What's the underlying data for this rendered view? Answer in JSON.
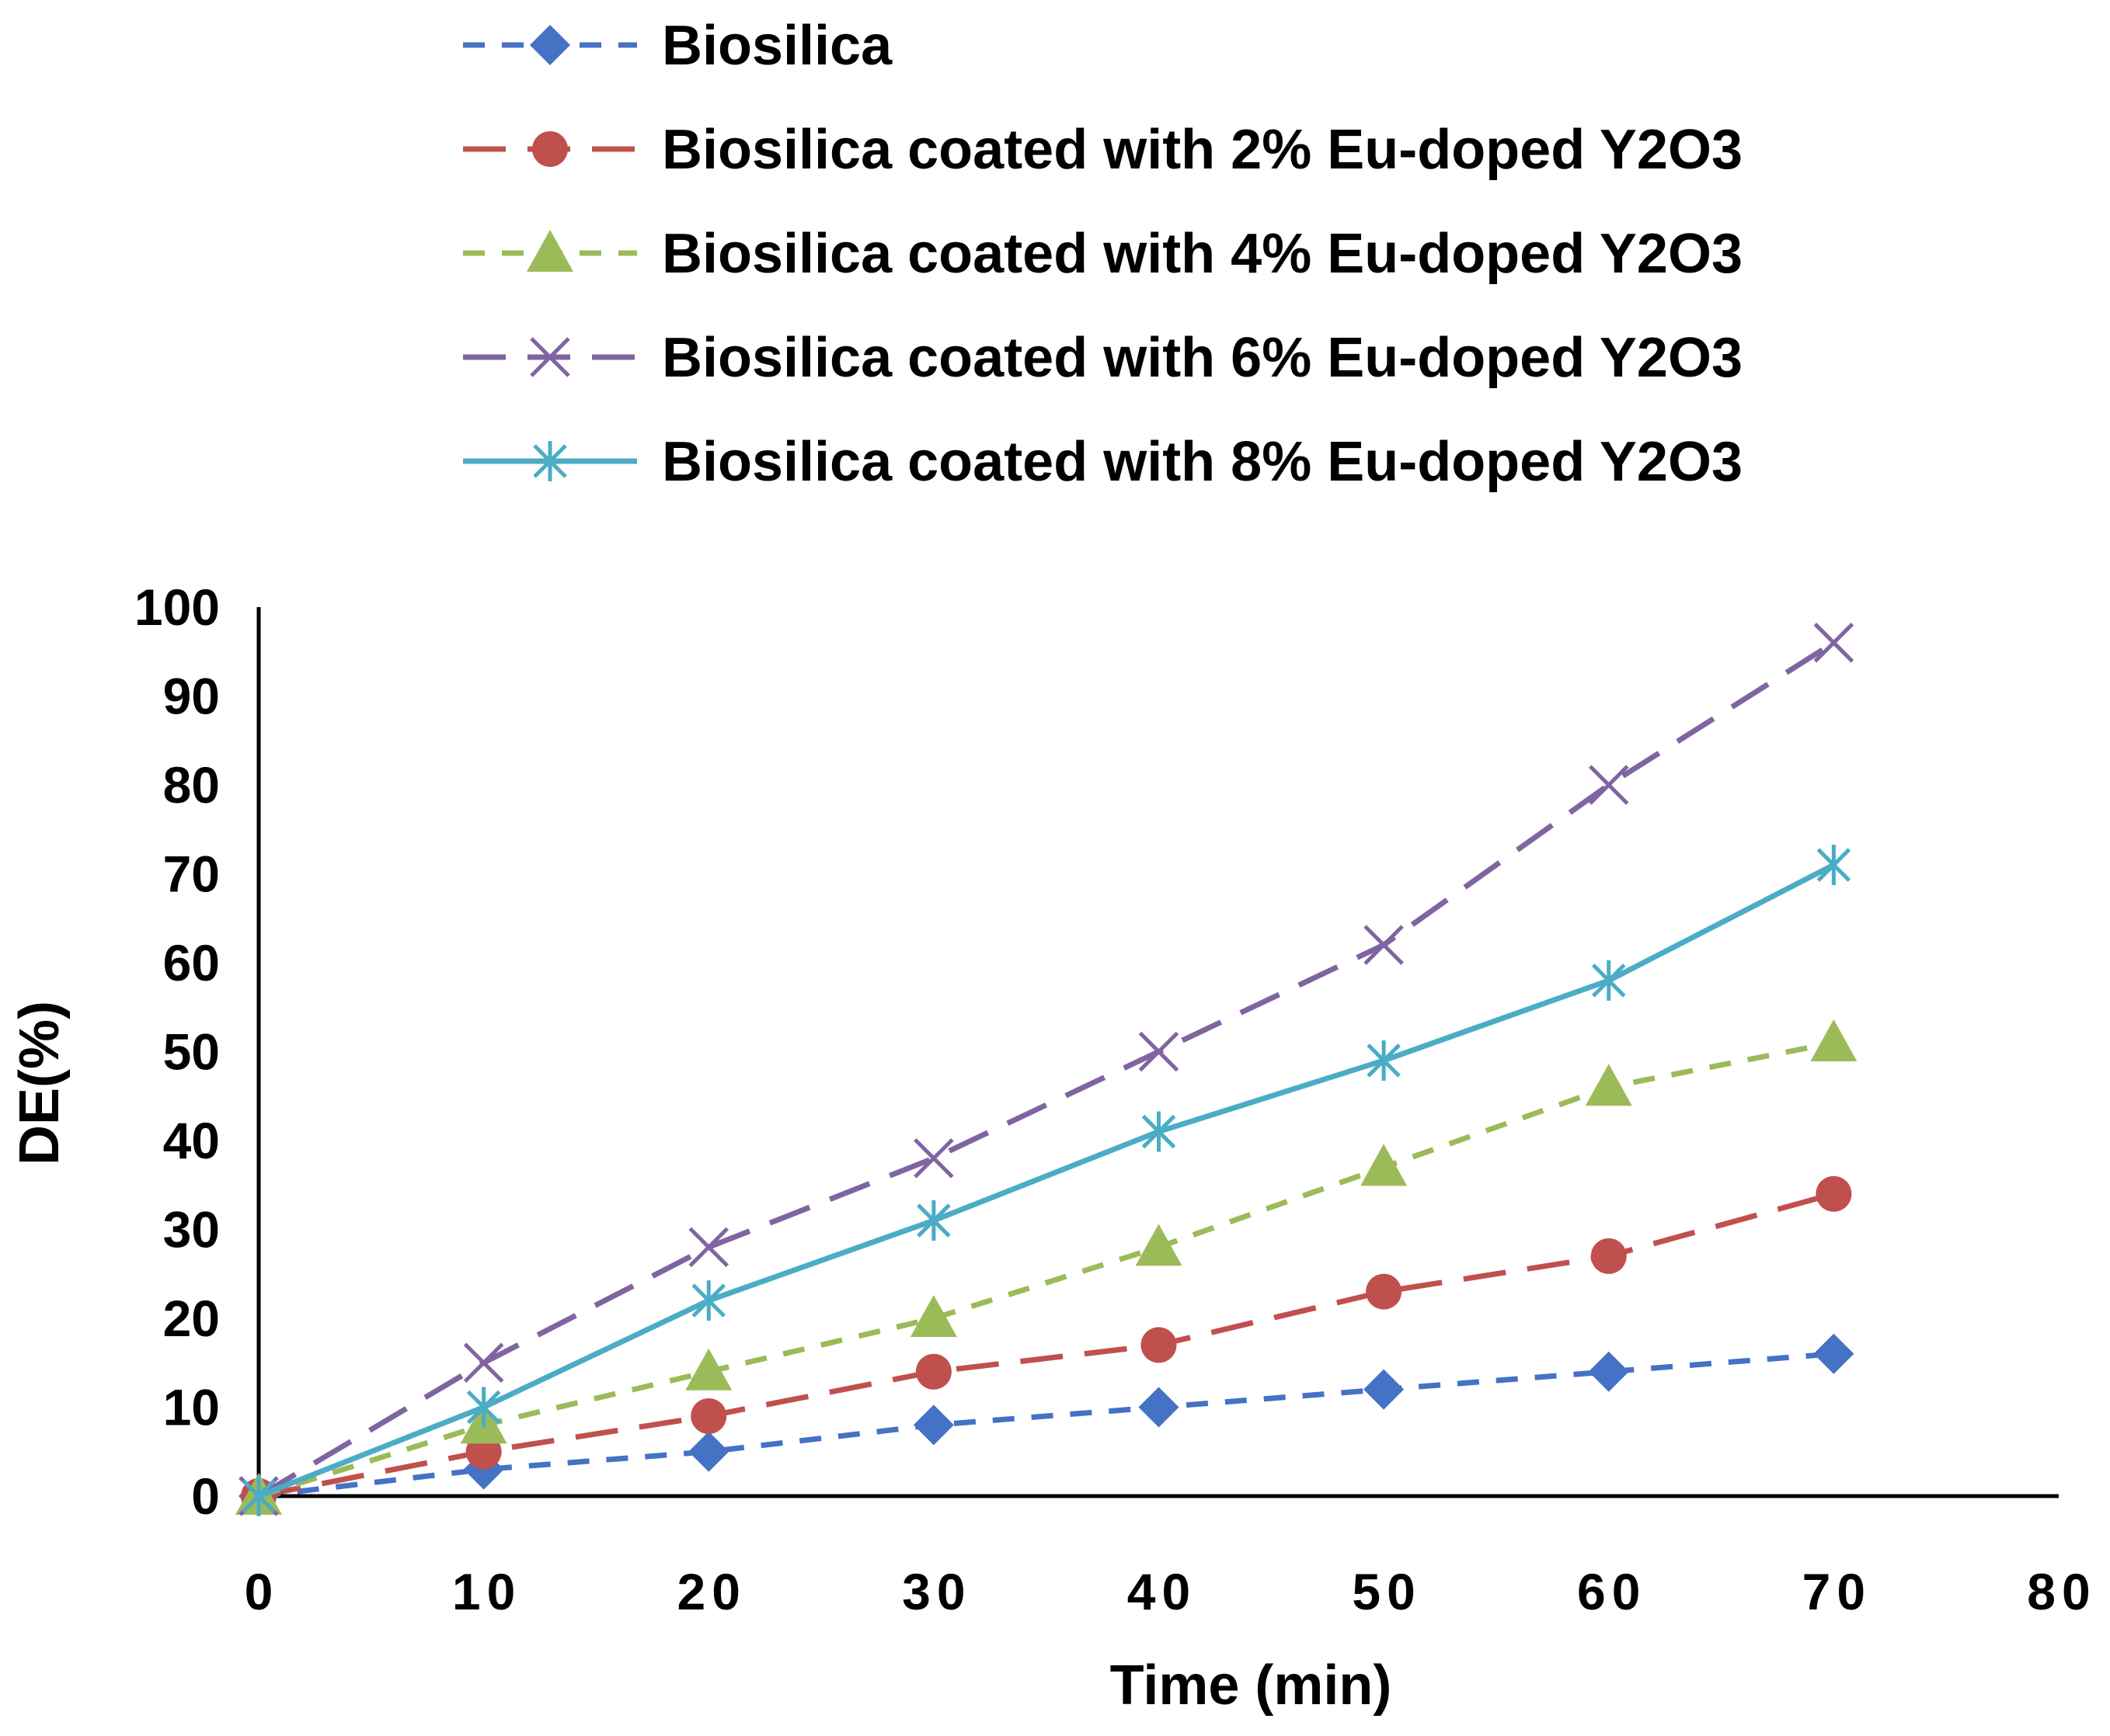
{
  "chart_data": {
    "type": "line",
    "title": "",
    "xlabel": "Time (min)",
    "ylabel": "DE(%)",
    "xlim": [
      0,
      80
    ],
    "ylim": [
      0,
      100
    ],
    "x_ticks": [
      0,
      10,
      20,
      30,
      40,
      50,
      60,
      70,
      80
    ],
    "y_ticks": [
      0,
      10,
      20,
      30,
      40,
      50,
      60,
      70,
      80,
      90,
      100
    ],
    "grid": false,
    "legend_position": "top",
    "x": [
      0,
      10,
      20,
      30,
      40,
      50,
      60,
      70
    ],
    "series": [
      {
        "name": "Biosilica",
        "values": [
          0,
          3,
          5,
          8,
          10,
          12,
          14,
          16
        ],
        "color": "#4472c4",
        "marker": "diamond",
        "line_style": "dashed-short"
      },
      {
        "name": "Biosilica coated with 2% Eu-doped Y2O3",
        "values": [
          0,
          5,
          9,
          14,
          17,
          23,
          27,
          34
        ],
        "color": "#c0504d",
        "marker": "circle",
        "line_style": "dashed-long"
      },
      {
        "name": "Biosilica coated with 4% Eu-doped Y2O3",
        "values": [
          0,
          8,
          14,
          20,
          28,
          37,
          46,
          51
        ],
        "color": "#9bbb59",
        "marker": "triangle",
        "line_style": "dashed-short"
      },
      {
        "name": "Biosilica coated with 6% Eu-doped Y2O3",
        "values": [
          0,
          15,
          28,
          38,
          50,
          62,
          80,
          96
        ],
        "color": "#8064a2",
        "marker": "x",
        "line_style": "dashed-long"
      },
      {
        "name": "Biosilica coated with 8% Eu-doped Y2O3",
        "values": [
          0,
          10,
          22,
          31,
          41,
          49,
          58,
          71
        ],
        "color": "#4bacc6",
        "marker": "star",
        "line_style": "solid"
      }
    ]
  }
}
